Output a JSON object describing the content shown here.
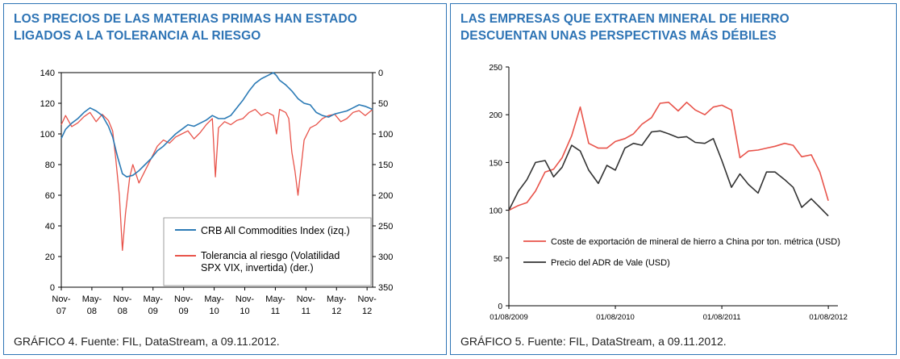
{
  "panels": [
    {
      "title_line1": "LOS PRECIOS DE LAS MATERIAS PRIMAS HAN ESTADO",
      "title_line2": "LIGADOS A LA TOLERANCIA AL RIESGO",
      "caption": "GRÁFICO 4. Fuente: FIL, DataStream, a 09.11.2012."
    },
    {
      "title_line1": "LAS EMPRESAS QUE EXTRAEN MINERAL DE HIERRO",
      "title_line2": "DESCUENTAN UNAS PERSPECTIVAS MÁS DÉBILES",
      "caption": "GRÁFICO 5. Fuente: FIL, DataStream, a 09.11.2012."
    }
  ],
  "chart_data": [
    {
      "type": "line",
      "title": "LOS PRECIOS DE LAS MATERIAS PRIMAS HAN ESTADO LIGADOS A LA TOLERANCIA AL RIESGO",
      "x_range": [
        2007.83,
        2012.92
      ],
      "x_ticks": [
        {
          "x": 2007.83,
          "line1": "Nov-",
          "line2": "07"
        },
        {
          "x": 2008.33,
          "line1": "May-",
          "line2": "08"
        },
        {
          "x": 2008.83,
          "line1": "Nov-",
          "line2": "08"
        },
        {
          "x": 2009.33,
          "line1": "May-",
          "line2": "09"
        },
        {
          "x": 2009.83,
          "line1": "Nov-",
          "line2": "09"
        },
        {
          "x": 2010.33,
          "line1": "May-",
          "line2": "10"
        },
        {
          "x": 2010.83,
          "line1": "Nov-",
          "line2": "10"
        },
        {
          "x": 2011.33,
          "line1": "May-",
          "line2": "11"
        },
        {
          "x": 2011.83,
          "line1": "Nov-",
          "line2": "11"
        },
        {
          "x": 2012.33,
          "line1": "May-",
          "line2": "12"
        },
        {
          "x": 2012.83,
          "line1": "Nov-",
          "line2": "12"
        }
      ],
      "y_left": {
        "min": 0,
        "max": 140,
        "ticks": [
          0,
          20,
          40,
          60,
          80,
          100,
          120,
          140
        ]
      },
      "y_right": {
        "min": 0,
        "max": 350,
        "inverted": true,
        "ticks": [
          0,
          50,
          100,
          150,
          200,
          250,
          300,
          350
        ]
      },
      "legend": {
        "position": "bottom-right",
        "label_lines": {
          "0": [
            "CRB All Commodities Index (izq.)"
          ],
          "1": [
            "Tolerancia al riesgo (Volatilidad",
            "SPX VIX, invertida) (der.)"
          ]
        }
      },
      "series": [
        {
          "name": "CRB All Commodities Index (izq.)",
          "color": "#2c7bb6",
          "axis": "left",
          "x": [
            2007.83,
            2007.9,
            2008.0,
            2008.1,
            2008.2,
            2008.3,
            2008.4,
            2008.5,
            2008.6,
            2008.67,
            2008.75,
            2008.83,
            2008.9,
            2009.0,
            2009.1,
            2009.2,
            2009.3,
            2009.4,
            2009.5,
            2009.6,
            2009.7,
            2009.8,
            2009.9,
            2010.0,
            2010.1,
            2010.2,
            2010.3,
            2010.4,
            2010.5,
            2010.6,
            2010.7,
            2010.8,
            2010.9,
            2011.0,
            2011.1,
            2011.2,
            2011.3,
            2011.35,
            2011.4,
            2011.5,
            2011.6,
            2011.7,
            2011.8,
            2011.9,
            2012.0,
            2012.1,
            2012.2,
            2012.3,
            2012.4,
            2012.5,
            2012.6,
            2012.7,
            2012.8,
            2012.92
          ],
          "values": [
            97,
            103,
            107,
            110,
            114,
            117,
            115,
            112,
            105,
            98,
            85,
            74,
            72,
            73,
            76,
            80,
            84,
            89,
            92,
            96,
            100,
            103,
            106,
            105,
            107,
            109,
            112,
            110,
            110,
            112,
            117,
            122,
            128,
            133,
            136,
            138,
            140,
            138,
            135,
            132,
            128,
            123,
            120,
            119,
            114,
            112,
            111,
            113,
            114,
            115,
            117,
            119,
            118,
            116
          ]
        },
        {
          "name": "Tolerancia al riesgo (Volatilidad SPX VIX, invertida) (der.)",
          "color": "#e8534a",
          "axis": "right",
          "x": [
            2007.83,
            2007.9,
            2008.0,
            2008.1,
            2008.2,
            2008.3,
            2008.4,
            2008.5,
            2008.6,
            2008.67,
            2008.72,
            2008.78,
            2008.83,
            2008.88,
            2008.95,
            2009.0,
            2009.1,
            2009.2,
            2009.3,
            2009.4,
            2009.5,
            2009.6,
            2009.7,
            2009.8,
            2009.9,
            2010.0,
            2010.1,
            2010.2,
            2010.3,
            2010.35,
            2010.4,
            2010.5,
            2010.6,
            2010.7,
            2010.8,
            2010.9,
            2011.0,
            2011.1,
            2011.2,
            2011.3,
            2011.35,
            2011.4,
            2011.5,
            2011.55,
            2011.6,
            2011.65,
            2011.7,
            2011.8,
            2011.9,
            2012.0,
            2012.1,
            2012.2,
            2012.3,
            2012.4,
            2012.5,
            2012.6,
            2012.7,
            2012.8,
            2012.92
          ],
          "values": [
            85,
            70,
            88,
            82,
            72,
            65,
            80,
            68,
            78,
            95,
            140,
            200,
            290,
            230,
            170,
            150,
            180,
            160,
            140,
            120,
            110,
            115,
            105,
            100,
            95,
            108,
            98,
            85,
            75,
            170,
            90,
            80,
            85,
            78,
            75,
            65,
            60,
            70,
            65,
            70,
            100,
            60,
            65,
            75,
            130,
            160,
            200,
            110,
            90,
            85,
            75,
            70,
            68,
            80,
            75,
            65,
            62,
            70,
            60
          ]
        }
      ]
    },
    {
      "type": "line",
      "title": "LAS EMPRESAS QUE EXTRAEN MINERAL DE HIERRO DESCUENTAN UNAS PERSPECTIVAS MÁS DÉBILES",
      "x_range": [
        2009.58,
        2012.67
      ],
      "x_ticks": [
        {
          "x": 2009.58,
          "label": "01/08/2009"
        },
        {
          "x": 2010.58,
          "label": "01/08/2010"
        },
        {
          "x": 2011.58,
          "label": "01/08/2011"
        },
        {
          "x": 2012.58,
          "label": "01/08/2012"
        }
      ],
      "y_left": {
        "min": 0,
        "max": 250,
        "ticks": [
          0,
          50,
          100,
          150,
          200,
          250
        ]
      },
      "legend": {
        "position": "bottom-center"
      },
      "series": [
        {
          "name": "Coste de exportación de mineral de hierro a China por ton. métrica (USD)",
          "color": "#e8534a",
          "x": [
            2009.58,
            2009.67,
            2009.75,
            2009.83,
            2009.92,
            2010.0,
            2010.08,
            2010.17,
            2010.25,
            2010.33,
            2010.42,
            2010.5,
            2010.58,
            2010.67,
            2010.75,
            2010.83,
            2010.92,
            2011.0,
            2011.08,
            2011.17,
            2011.25,
            2011.33,
            2011.42,
            2011.5,
            2011.58,
            2011.67,
            2011.75,
            2011.83,
            2011.92,
            2012.0,
            2012.08,
            2012.17,
            2012.25,
            2012.33,
            2012.42,
            2012.5,
            2012.58
          ],
          "values": [
            100,
            105,
            108,
            120,
            140,
            143,
            155,
            178,
            208,
            170,
            165,
            165,
            172,
            175,
            180,
            190,
            197,
            212,
            213,
            204,
            213,
            205,
            200,
            208,
            210,
            205,
            155,
            162,
            163,
            165,
            167,
            170,
            168,
            156,
            158,
            140,
            110
          ]
        },
        {
          "name": "Precio del ADR de Vale (USD)",
          "color": "#333333",
          "x": [
            2009.58,
            2009.67,
            2009.75,
            2009.83,
            2009.92,
            2010.0,
            2010.08,
            2010.17,
            2010.25,
            2010.33,
            2010.42,
            2010.5,
            2010.58,
            2010.67,
            2010.75,
            2010.83,
            2010.92,
            2011.0,
            2011.08,
            2011.17,
            2011.25,
            2011.33,
            2011.42,
            2011.5,
            2011.58,
            2011.67,
            2011.75,
            2011.83,
            2011.92,
            2012.0,
            2012.08,
            2012.17,
            2012.25,
            2012.33,
            2012.42,
            2012.5,
            2012.58
          ],
          "values": [
            100,
            120,
            132,
            150,
            152,
            135,
            145,
            168,
            162,
            142,
            128,
            147,
            142,
            165,
            170,
            168,
            182,
            183,
            180,
            176,
            177,
            171,
            170,
            175,
            152,
            124,
            138,
            127,
            118,
            140,
            140,
            132,
            124,
            103,
            112,
            103,
            94
          ]
        }
      ]
    }
  ]
}
